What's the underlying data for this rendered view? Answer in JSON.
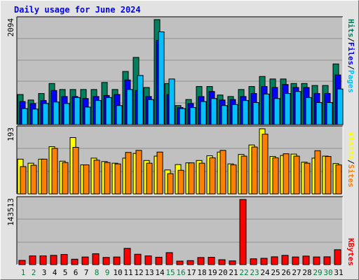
{
  "title": "Daily usage for June 2024",
  "colors": {
    "background": "#e2e2e2",
    "plot_background": "#c0c0c0",
    "gridline": "#8f8f8f",
    "hits": "#00805c",
    "files": "#0000ff",
    "pages": "#00c0ff",
    "visits": "#ffff00",
    "sites": "#ff8000",
    "kbytes": "#ff0000",
    "weekend_label": "#008040",
    "weekday_label": "#000000"
  },
  "legend": {
    "top": [
      {
        "text": "Hits",
        "series": "hits"
      },
      {
        "text": "/",
        "series": null
      },
      {
        "text": "Files",
        "series": "files"
      },
      {
        "text": "/",
        "series": null
      },
      {
        "text": "Pages",
        "series": "pages"
      }
    ],
    "middle": [
      {
        "text": "Visits",
        "series": "visits"
      },
      {
        "text": "/",
        "series": null
      },
      {
        "text": "Sites",
        "series": "sites"
      }
    ],
    "bottom": [
      {
        "text": "KBytes",
        "series": "kbytes"
      }
    ]
  },
  "chart_data": [
    {
      "type": "bar",
      "panel": "hits-files-pages",
      "y_label": "2094",
      "ylim": [
        0,
        2094
      ],
      "grid": true,
      "categories": [
        "1",
        "2",
        "3",
        "4",
        "5",
        "6",
        "7",
        "8",
        "9",
        "10",
        "11",
        "12",
        "13",
        "14",
        "15",
        "16",
        "17",
        "18",
        "19",
        "20",
        "21",
        "22",
        "23",
        "24",
        "25",
        "26",
        "27",
        "28",
        "29",
        "30",
        "31"
      ],
      "series": [
        {
          "name": "Hits",
          "key": "hits",
          "values": [
            600,
            490,
            620,
            820,
            700,
            700,
            700,
            700,
            840,
            700,
            1060,
            1340,
            740,
            2094,
            820,
            380,
            500,
            760,
            760,
            590,
            560,
            700,
            760,
            960,
            910,
            910,
            820,
            820,
            780,
            780,
            1210
          ]
        },
        {
          "name": "Files",
          "key": "files",
          "values": [
            460,
            420,
            480,
            680,
            560,
            560,
            520,
            560,
            580,
            600,
            890,
            680,
            560,
            1680,
            600,
            340,
            420,
            560,
            660,
            490,
            500,
            560,
            620,
            760,
            740,
            800,
            740,
            740,
            620,
            620,
            990
          ]
        },
        {
          "name": "Pages",
          "key": "pages",
          "values": [
            320,
            310,
            420,
            450,
            420,
            540,
            350,
            480,
            540,
            380,
            700,
            980,
            500,
            1850,
            910,
            320,
            340,
            460,
            520,
            380,
            400,
            480,
            440,
            610,
            520,
            620,
            660,
            540,
            440,
            440,
            710
          ]
        }
      ]
    },
    {
      "type": "bar",
      "panel": "visits-sites",
      "y_label": "193",
      "ylim": [
        0,
        193
      ],
      "grid": true,
      "categories": [
        "1",
        "2",
        "3",
        "4",
        "5",
        "6",
        "7",
        "8",
        "9",
        "10",
        "11",
        "12",
        "13",
        "14",
        "15",
        "16",
        "17",
        "18",
        "19",
        "20",
        "21",
        "22",
        "23",
        "24",
        "25",
        "26",
        "27",
        "28",
        "29",
        "30",
        "31"
      ],
      "series": [
        {
          "name": "Visits",
          "key": "visits",
          "values": [
            103,
            91,
            103,
            140,
            97,
            167,
            86,
            106,
            96,
            91,
            106,
            120,
            99,
            112,
            71,
            87,
            92,
            99,
            113,
            124,
            89,
            117,
            145,
            193,
            111,
            114,
            118,
            94,
            106,
            112,
            90
          ]
        },
        {
          "name": "Sites",
          "key": "sites",
          "values": [
            81,
            85,
            103,
            135,
            93,
            138,
            86,
            100,
            93,
            89,
            123,
            129,
            91,
            124,
            60,
            70,
            92,
            91,
            107,
            129,
            86,
            112,
            139,
            177,
            107,
            119,
            112,
            91,
            128,
            111,
            86
          ]
        }
      ]
    },
    {
      "type": "bar",
      "panel": "kbytes",
      "y_label": "143513",
      "ylim": [
        0,
        143513
      ],
      "grid": true,
      "categories": [
        "1",
        "2",
        "3",
        "4",
        "5",
        "6",
        "7",
        "8",
        "9",
        "10",
        "11",
        "12",
        "13",
        "14",
        "15",
        "16",
        "17",
        "18",
        "19",
        "20",
        "21",
        "22",
        "23",
        "24",
        "25",
        "26",
        "27",
        "28",
        "29",
        "30",
        "31"
      ],
      "series": [
        {
          "name": "KBytes",
          "key": "kbytes",
          "values": [
            9300,
            19300,
            19300,
            20400,
            22400,
            11900,
            16800,
            24000,
            15800,
            16800,
            35800,
            22800,
            19300,
            16300,
            26400,
            7700,
            8800,
            15600,
            16200,
            10800,
            8200,
            143513,
            12800,
            13900,
            17200,
            20400,
            16800,
            18800,
            16800,
            17200,
            32800
          ]
        }
      ]
    }
  ],
  "x_axis": {
    "labels": [
      "1",
      "2",
      "3",
      "4",
      "5",
      "6",
      "7",
      "8",
      "9",
      "10",
      "11",
      "12",
      "13",
      "14",
      "15",
      "16",
      "17",
      "18",
      "19",
      "20",
      "21",
      "22",
      "23",
      "24",
      "25",
      "26",
      "27",
      "28",
      "29",
      "30",
      "31"
    ],
    "weekend_days": [
      "1",
      "2",
      "8",
      "9",
      "15",
      "16",
      "22",
      "23",
      "29",
      "30"
    ]
  }
}
